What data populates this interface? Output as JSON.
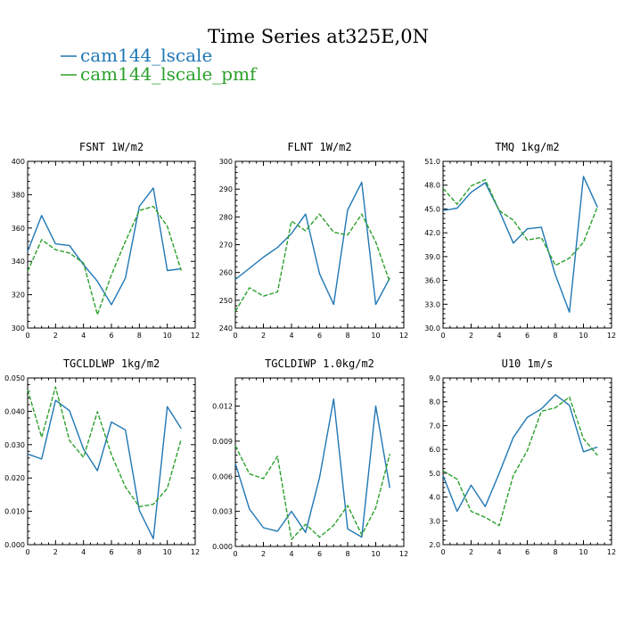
{
  "title": "Time Series at325E,0N",
  "colors": {
    "cam144_lscale": "#1f77b4",
    "cam144_lscale_pmf": "#2ca02c"
  },
  "legend": [
    {
      "label": "cam144_lscale",
      "color": "#1f77b4",
      "style": "solid"
    },
    {
      "label": "cam144_lscale_pmf",
      "color": "#2ca02c",
      "style": "dashed"
    }
  ],
  "chart_data": [
    {
      "type": "line",
      "title": "FSNT",
      "units": "1W/m2",
      "xlim": [
        0,
        12
      ],
      "xticks": [
        0,
        2,
        4,
        6,
        8,
        10,
        12
      ],
      "ylim": [
        300,
        400
      ],
      "yticks": [
        "300",
        "320",
        "340",
        "360",
        "380",
        "400"
      ],
      "x": [
        0,
        1,
        2,
        3,
        4,
        5,
        6,
        7,
        8,
        9,
        10,
        11
      ],
      "series": [
        {
          "name": "cam144_lscale",
          "values": [
            346,
            367.5,
            350.5,
            349.5,
            338,
            328,
            314,
            330,
            373,
            384,
            334.5,
            335.5
          ]
        },
        {
          "name": "cam144_lscale_pmf",
          "values": [
            334,
            353,
            347,
            345,
            339,
            308,
            332,
            352,
            370.5,
            373,
            361,
            334.5
          ]
        }
      ]
    },
    {
      "type": "line",
      "title": "FLNT",
      "units": "1W/m2",
      "xlim": [
        0,
        12
      ],
      "xticks": [
        0,
        2,
        4,
        6,
        8,
        10,
        12
      ],
      "ylim": [
        240,
        300
      ],
      "yticks": [
        "240",
        "250",
        "260",
        "270",
        "280",
        "290",
        "300"
      ],
      "x": [
        0,
        1,
        2,
        3,
        4,
        5,
        6,
        7,
        8,
        9,
        10,
        11
      ],
      "series": [
        {
          "name": "cam144_lscale",
          "values": [
            257.5,
            261.5,
            265.5,
            269,
            274,
            281,
            259.5,
            248.5,
            282.5,
            292.5,
            248.5,
            258
          ]
        },
        {
          "name": "cam144_lscale_pmf",
          "values": [
            246,
            254.5,
            251.5,
            253,
            278.5,
            275,
            281,
            274.5,
            273.5,
            281,
            271,
            256.5
          ]
        }
      ]
    },
    {
      "type": "line",
      "title": "TMQ",
      "units": "1kg/m2",
      "xlim": [
        0,
        12
      ],
      "xticks": [
        0,
        2,
        4,
        6,
        8,
        10,
        12
      ],
      "ylim": [
        30,
        51
      ],
      "yticks": [
        "30.0",
        "33.0",
        "36.0",
        "39.0",
        "42.0",
        "45.0",
        "48.0",
        "51.0"
      ],
      "x": [
        0,
        1,
        2,
        3,
        4,
        5,
        6,
        7,
        8,
        9,
        10,
        11
      ],
      "series": [
        {
          "name": "cam144_lscale",
          "values": [
            44.8,
            45.1,
            47.1,
            48.3,
            44.8,
            40.7,
            42.5,
            42.7,
            36.7,
            32.0,
            49.1,
            45.2
          ]
        },
        {
          "name": "cam144_lscale_pmf",
          "values": [
            47.6,
            45.6,
            47.9,
            48.7,
            44.8,
            43.6,
            41.1,
            41.4,
            37.9,
            38.8,
            40.8,
            45.3
          ]
        }
      ]
    },
    {
      "type": "line",
      "title": "TGCLDLWP",
      "units": "1kg/m2",
      "xlim": [
        0,
        12
      ],
      "xticks": [
        0,
        2,
        4,
        6,
        8,
        10,
        12
      ],
      "ylim": [
        0,
        0.05
      ],
      "yticks": [
        "0.000",
        "0.010",
        "0.020",
        "0.030",
        "0.040",
        "0.050"
      ],
      "x": [
        0,
        1,
        2,
        3,
        4,
        5,
        6,
        7,
        8,
        9,
        10,
        11
      ],
      "series": [
        {
          "name": "cam144_lscale",
          "values": [
            0.0272,
            0.0257,
            0.0433,
            0.0402,
            0.0287,
            0.0222,
            0.0368,
            0.0344,
            0.0103,
            0.0018,
            0.0414,
            0.0348
          ]
        },
        {
          "name": "cam144_lscale_pmf",
          "values": [
            0.0465,
            0.0322,
            0.0473,
            0.0312,
            0.0262,
            0.0399,
            0.027,
            0.0173,
            0.0114,
            0.0121,
            0.0169,
            0.0317
          ]
        }
      ]
    },
    {
      "type": "line",
      "title": "TGCLDIWP",
      "units": "1.0kg/m2",
      "xlim": [
        0,
        12
      ],
      "xticks": [
        0,
        2,
        4,
        6,
        8,
        10,
        12
      ],
      "ylim": [
        0,
        0.0144
      ],
      "yticks": [
        "0.000",
        "0.003",
        "0.006",
        "0.009",
        "0.012"
      ],
      "x": [
        0,
        1,
        2,
        3,
        4,
        5,
        6,
        7,
        8,
        9,
        10,
        11
      ],
      "series": [
        {
          "name": "cam144_lscale",
          "values": [
            0.0071,
            0.0032,
            0.0016,
            0.0013,
            0.003,
            0.0012,
            0.0059,
            0.0126,
            0.0015,
            0.0008,
            0.012,
            0.005
          ]
        },
        {
          "name": "cam144_lscale_pmf",
          "values": [
            0.0086,
            0.0062,
            0.0058,
            0.0077,
            0.0006,
            0.0019,
            0.0008,
            0.0018,
            0.0035,
            0.001,
            0.0033,
            0.0079
          ]
        }
      ]
    },
    {
      "type": "line",
      "title": "U10",
      "units": "1m/s",
      "xlim": [
        0,
        12
      ],
      "xticks": [
        0,
        2,
        4,
        6,
        8,
        10,
        12
      ],
      "ylim": [
        2,
        9
      ],
      "yticks": [
        "2.0",
        "3.0",
        "4.0",
        "5.0",
        "6.0",
        "7.0",
        "8.0",
        "9.0"
      ],
      "x": [
        0,
        1,
        2,
        3,
        4,
        5,
        6,
        7,
        8,
        9,
        10,
        11
      ],
      "series": [
        {
          "name": "cam144_lscale",
          "values": [
            4.9,
            3.4,
            4.5,
            3.6,
            5.0,
            6.5,
            7.35,
            7.7,
            8.3,
            7.85,
            5.9,
            6.1
          ]
        },
        {
          "name": "cam144_lscale_pmf",
          "values": [
            5.1,
            4.75,
            3.4,
            3.15,
            2.8,
            4.9,
            5.95,
            7.6,
            7.75,
            8.2,
            6.45,
            5.75
          ]
        }
      ]
    }
  ]
}
